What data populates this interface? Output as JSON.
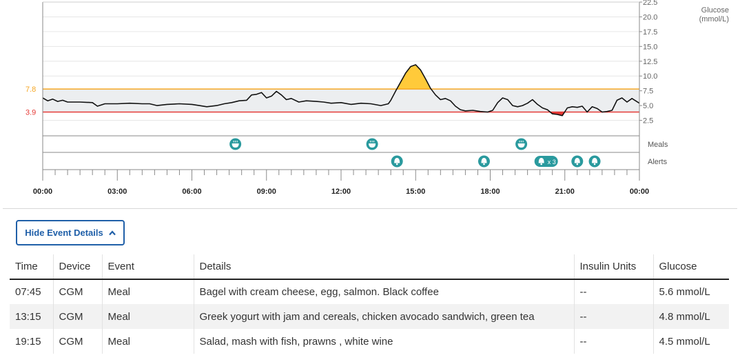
{
  "chart_data": {
    "type": "line",
    "xlabel": "",
    "ylabel": "Glucose\n(mmol/L)",
    "ylabel_lines": [
      "Glucose",
      "(mmol/L)"
    ],
    "ylim": [
      0,
      22.5
    ],
    "yticks": [
      "22.5",
      "20.0",
      "17.5",
      "15.0",
      "12.5",
      "10.0",
      "7.5",
      "5.0",
      "2.5"
    ],
    "ytick_values": [
      22.5,
      20.0,
      17.5,
      15.0,
      12.5,
      10.0,
      7.5,
      5.0,
      2.5
    ],
    "xticks": [
      "00:00",
      "03:00",
      "06:00",
      "09:00",
      "12:00",
      "15:00",
      "18:00",
      "21:00",
      "00:00"
    ],
    "xlim_hours": [
      0,
      24
    ],
    "target_range": {
      "low": 3.9,
      "high": 7.8,
      "low_label": "3.9",
      "high_label": "7.8",
      "high_color": "#f5a623",
      "low_color": "#e53935"
    },
    "series": [
      {
        "hours": [
          0.0,
          0.2,
          0.4,
          0.6,
          0.8,
          1.0,
          1.5,
          2.0,
          2.2,
          2.5,
          3.0,
          3.5,
          4.0,
          4.3,
          4.6,
          5.0,
          5.5,
          6.0,
          6.3,
          6.6,
          7.0,
          7.3,
          7.6,
          7.9,
          8.2,
          8.4,
          8.6,
          8.8,
          9.0,
          9.2,
          9.4,
          9.6,
          9.8,
          10.0,
          10.3,
          10.6,
          11.0,
          11.3,
          11.6,
          12.0,
          12.4,
          12.8,
          13.2,
          13.6,
          13.9,
          14.0,
          14.2,
          14.4,
          14.6,
          14.8,
          15.0,
          15.2,
          15.4,
          15.6,
          15.8,
          16.0,
          16.2,
          16.4,
          16.6,
          16.8,
          17.0,
          17.3,
          17.6,
          17.9,
          18.1,
          18.3,
          18.5,
          18.7,
          18.9,
          19.1,
          19.3,
          19.5,
          19.7,
          19.9,
          20.1,
          20.3,
          20.5,
          20.7,
          20.9,
          21.1,
          21.3,
          21.5,
          21.7,
          21.9,
          22.1,
          22.3,
          22.5,
          22.7,
          22.9,
          23.1,
          23.3,
          23.5,
          23.7,
          24.0
        ],
        "values": [
          6.3,
          5.8,
          6.1,
          5.7,
          5.9,
          5.6,
          5.6,
          5.5,
          4.9,
          5.3,
          5.3,
          5.4,
          5.3,
          5.3,
          5.0,
          5.2,
          5.3,
          5.2,
          5.0,
          4.8,
          5.0,
          5.3,
          5.5,
          5.8,
          5.9,
          6.8,
          6.9,
          7.2,
          6.3,
          6.6,
          7.4,
          6.8,
          6.0,
          6.2,
          5.6,
          5.8,
          5.7,
          5.6,
          5.4,
          5.5,
          5.2,
          5.4,
          5.3,
          5.0,
          5.3,
          5.9,
          7.5,
          9.0,
          10.5,
          11.6,
          11.9,
          11.0,
          9.5,
          7.9,
          6.8,
          6.0,
          6.2,
          5.8,
          4.9,
          4.3,
          4.1,
          4.2,
          4.0,
          3.9,
          4.2,
          5.5,
          6.3,
          6.0,
          5.0,
          4.8,
          5.0,
          5.4,
          6.0,
          5.2,
          4.6,
          4.3,
          3.6,
          3.5,
          3.3,
          4.6,
          4.8,
          4.7,
          4.9,
          3.9,
          4.8,
          4.5,
          3.9,
          4.0,
          4.2,
          5.9,
          6.3,
          5.6,
          6.2,
          5.4
        ]
      }
    ],
    "tracks": [
      {
        "name": "Meals",
        "events": [
          {
            "hour": 7.75,
            "icon": "meal-icon"
          },
          {
            "hour": 13.25,
            "icon": "meal-icon"
          },
          {
            "hour": 19.25,
            "icon": "meal-icon"
          }
        ]
      },
      {
        "name": "Alerts",
        "events": [
          {
            "hour": 14.25,
            "icon": "bell-icon"
          },
          {
            "hour": 17.75,
            "icon": "bell-icon"
          },
          {
            "hour": 20.25,
            "icon": "bell-icon",
            "count_label": "x 3"
          },
          {
            "hour": 21.5,
            "icon": "bell-icon"
          },
          {
            "hour": 22.2,
            "icon": "bell-icon"
          }
        ]
      }
    ],
    "colors": {
      "line": "#111111",
      "band": "#eceef0",
      "above_fill": "#ffca3a",
      "below_fill": "#e53935",
      "marker": "#2a9a9e",
      "grid": "#e6e6e6"
    }
  },
  "toggle": {
    "label": "Hide Event Details",
    "icon": "chevron-up-icon"
  },
  "table": {
    "headers": [
      "Time",
      "Device",
      "Event",
      "Details",
      "Insulin Units",
      "Glucose"
    ],
    "rows": [
      [
        "07:45",
        "CGM",
        "Meal",
        "Bagel with cream cheese, egg, salmon. Black coffee",
        "--",
        "5.6 mmol/L"
      ],
      [
        "13:15",
        "CGM",
        "Meal",
        "Greek yogurt with jam and cereals, chicken avocado sandwich, green tea",
        "--",
        "4.8 mmol/L"
      ],
      [
        "19:15",
        "CGM",
        "Meal",
        "Salad, mash with fish, prawns , white wine",
        "--",
        "4.5 mmol/L"
      ]
    ]
  }
}
